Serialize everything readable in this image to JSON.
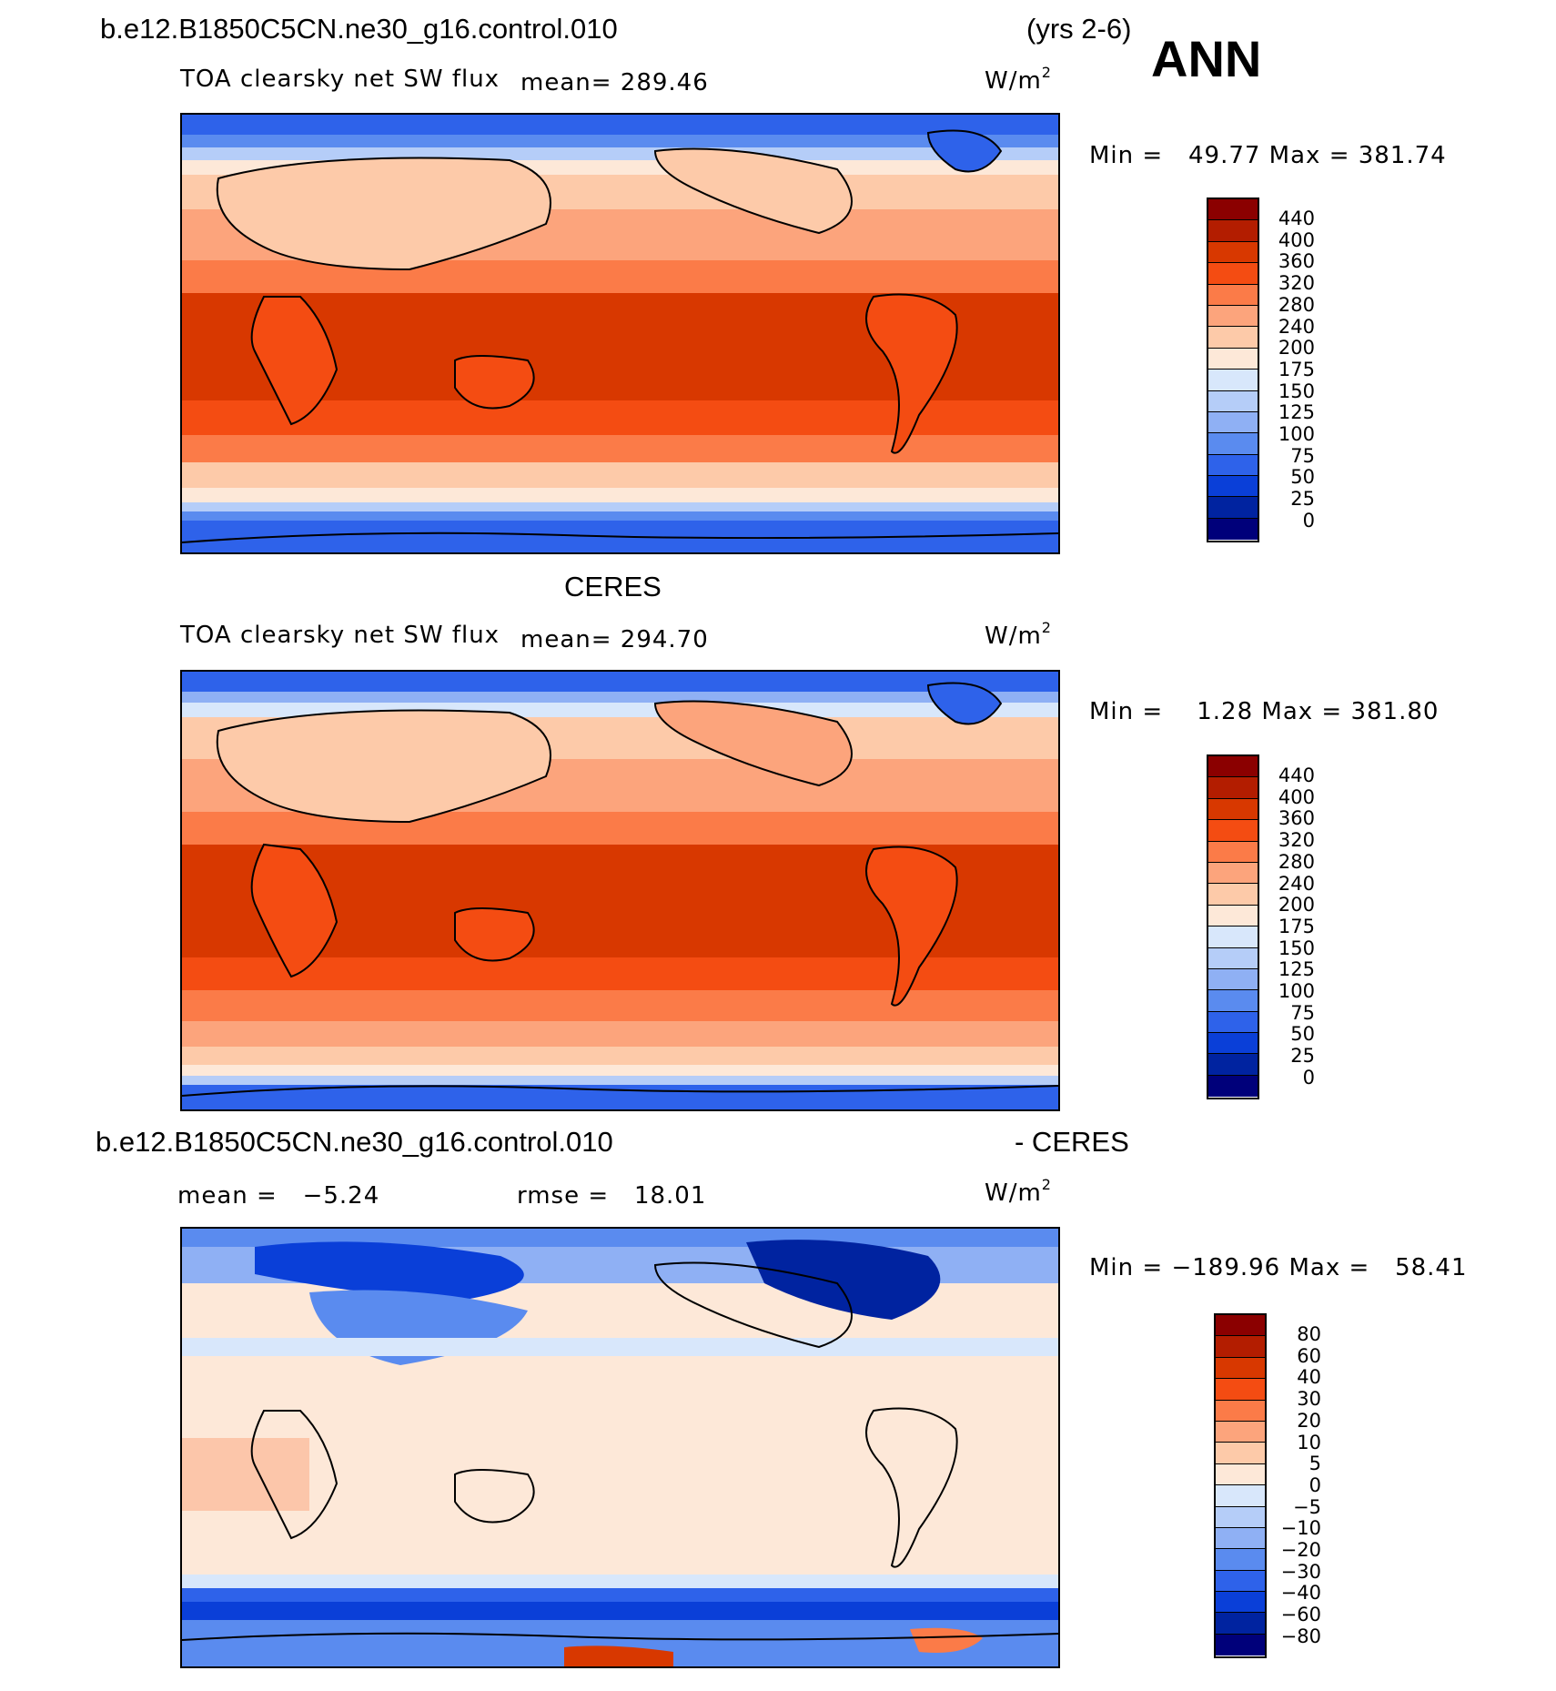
{
  "header": {
    "case_name": "b.e12.B1850C5CN.ne30_g16.control.010",
    "years": "(yrs 2-6)",
    "season": "ANN"
  },
  "panels": [
    {
      "id": "model",
      "title": "",
      "variable": "TOA clearsky net SW flux",
      "mean_text": "mean= 289.46",
      "units": "W/m",
      "units_sup": "2",
      "minmax": "Min =   49.77 Max = 381.74",
      "colorbar_labels": [
        "440",
        "400",
        "360",
        "320",
        "280",
        "240",
        "200",
        "175",
        "150",
        "125",
        "100",
        "75",
        "50",
        "25",
        "0"
      ],
      "colorbar_colors": [
        "#8b0000",
        "#b31d00",
        "#d83800",
        "#f44c12",
        "#fb7b48",
        "#fca47c",
        "#fdcaa9",
        "#fde8d8",
        "#d8e7fb",
        "#b5cdf8",
        "#8fb0f4",
        "#5a8bef",
        "#2e62ea",
        "#0a3fd8",
        "#0023a0",
        "#00007a"
      ]
    },
    {
      "id": "obs",
      "title": "CERES",
      "variable": "TOA clearsky net SW flux",
      "mean_text": "mean= 294.70",
      "units": "W/m",
      "units_sup": "2",
      "minmax": "Min =    1.28 Max = 381.80",
      "colorbar_labels": [
        "440",
        "400",
        "360",
        "320",
        "280",
        "240",
        "200",
        "175",
        "150",
        "125",
        "100",
        "75",
        "50",
        "25",
        "0"
      ],
      "colorbar_colors": [
        "#8b0000",
        "#b31d00",
        "#d83800",
        "#f44c12",
        "#fb7b48",
        "#fca47c",
        "#fdcaa9",
        "#fde8d8",
        "#d8e7fb",
        "#b5cdf8",
        "#8fb0f4",
        "#5a8bef",
        "#2e62ea",
        "#0a3fd8",
        "#0023a0",
        "#00007a"
      ]
    },
    {
      "id": "diff",
      "title_left": "b.e12.B1850C5CN.ne30_g16.control.010",
      "title_right": "- CERES",
      "mean_text": "mean =   −5.24",
      "rmse_text": "rmse =   18.01",
      "units": "W/m",
      "units_sup": "2",
      "minmax": "Min = −189.96 Max =   58.41",
      "colorbar_labels": [
        "80",
        "60",
        "40",
        "30",
        "20",
        "10",
        "5",
        "0",
        "−5",
        "−10",
        "−20",
        "−30",
        "−40",
        "−60",
        "−80"
      ],
      "colorbar_colors": [
        "#8b0000",
        "#b31d00",
        "#d83800",
        "#f44c12",
        "#fb7b48",
        "#fca47c",
        "#fdcaa9",
        "#fde8d8",
        "#d8e7fb",
        "#b5cdf8",
        "#8fb0f4",
        "#5a8bef",
        "#2e62ea",
        "#0a3fd8",
        "#0023a0",
        "#00007a"
      ]
    }
  ],
  "colors": {
    "ocean_blue": "#2e62ea",
    "tropical_red": "#d83800",
    "coastline": "#000000",
    "diff_background": "#fde8d8"
  }
}
